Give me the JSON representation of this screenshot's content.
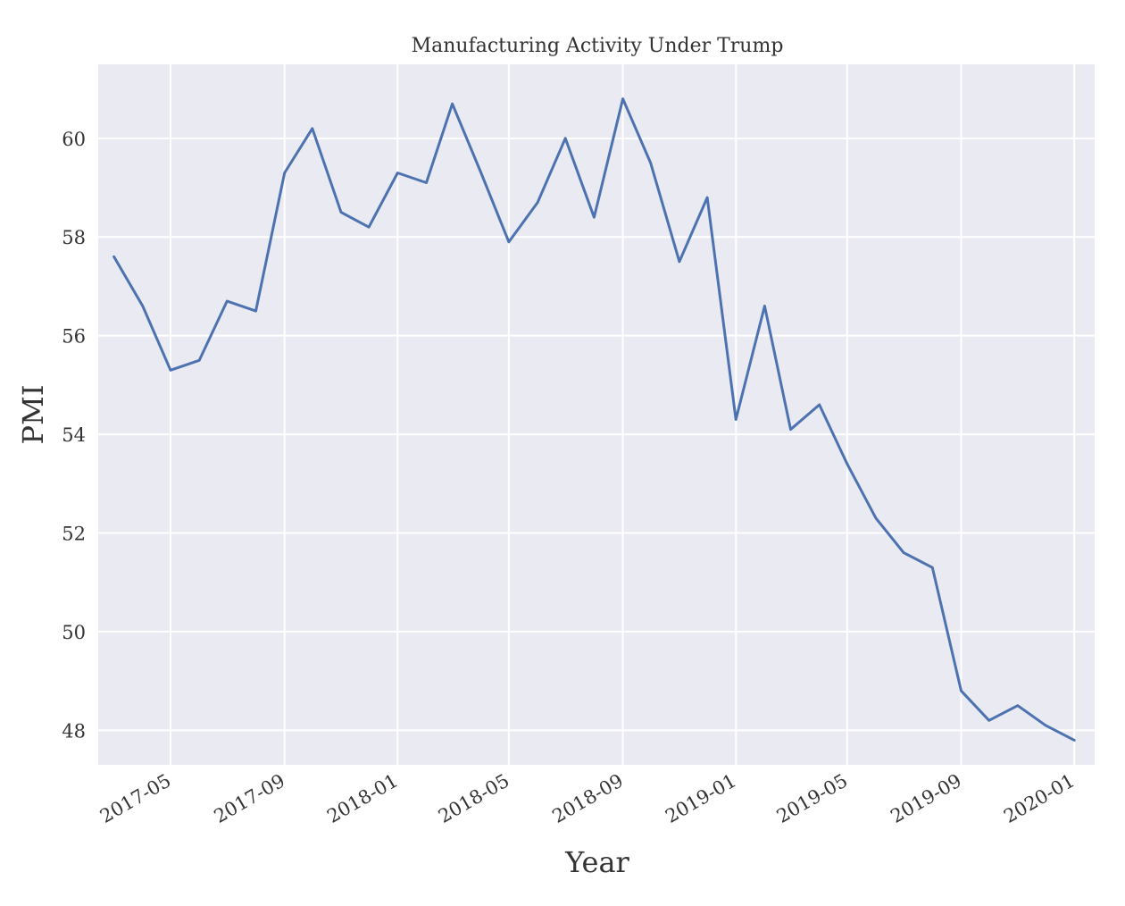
{
  "chart_data": {
    "type": "line",
    "title": "Manufacturing Activity Under Trump",
    "xlabel": "Year",
    "ylabel": "PMI",
    "grid": true,
    "x_tick_labels": [
      "2017-05",
      "2017-09",
      "2018-01",
      "2018-05",
      "2018-09",
      "2019-01",
      "2019-05",
      "2019-09",
      "2020-01"
    ],
    "y_tick_labels": [
      "48",
      "50",
      "52",
      "54",
      "56",
      "58",
      "60"
    ],
    "xlim": [
      "2017-02-12",
      "2020-01-23"
    ],
    "ylim": [
      47.3,
      61.5
    ],
    "colors": {
      "line": "#4c72b0",
      "background": "#eaeaf2",
      "grid": "#ffffff"
    },
    "x": [
      "2017-03-01",
      "2017-04-01",
      "2017-05-01",
      "2017-06-01",
      "2017-07-01",
      "2017-08-01",
      "2017-09-01",
      "2017-10-01",
      "2017-11-01",
      "2017-12-01",
      "2018-01-01",
      "2018-02-01",
      "2018-03-01",
      "2018-04-01",
      "2018-05-01",
      "2018-06-01",
      "2018-07-01",
      "2018-08-01",
      "2018-09-01",
      "2018-10-01",
      "2018-11-01",
      "2018-12-01",
      "2019-01-01",
      "2019-02-01",
      "2019-03-01",
      "2019-04-01",
      "2019-05-01",
      "2019-06-01",
      "2019-07-01",
      "2019-08-01",
      "2019-09-01",
      "2019-10-01",
      "2019-11-01",
      "2019-12-01",
      "2020-01-01"
    ],
    "series": [
      {
        "values": [
          57.6,
          56.6,
          55.3,
          55.5,
          56.7,
          56.5,
          59.3,
          60.2,
          58.5,
          58.2,
          59.3,
          59.1,
          60.7,
          59.3,
          57.9,
          58.7,
          60.0,
          58.4,
          60.8,
          59.5,
          57.5,
          58.8,
          54.3,
          56.6,
          54.1,
          54.6,
          53.4,
          52.3,
          51.6,
          51.3,
          48.8,
          48.2,
          48.5,
          48.1,
          47.8
        ]
      }
    ]
  }
}
